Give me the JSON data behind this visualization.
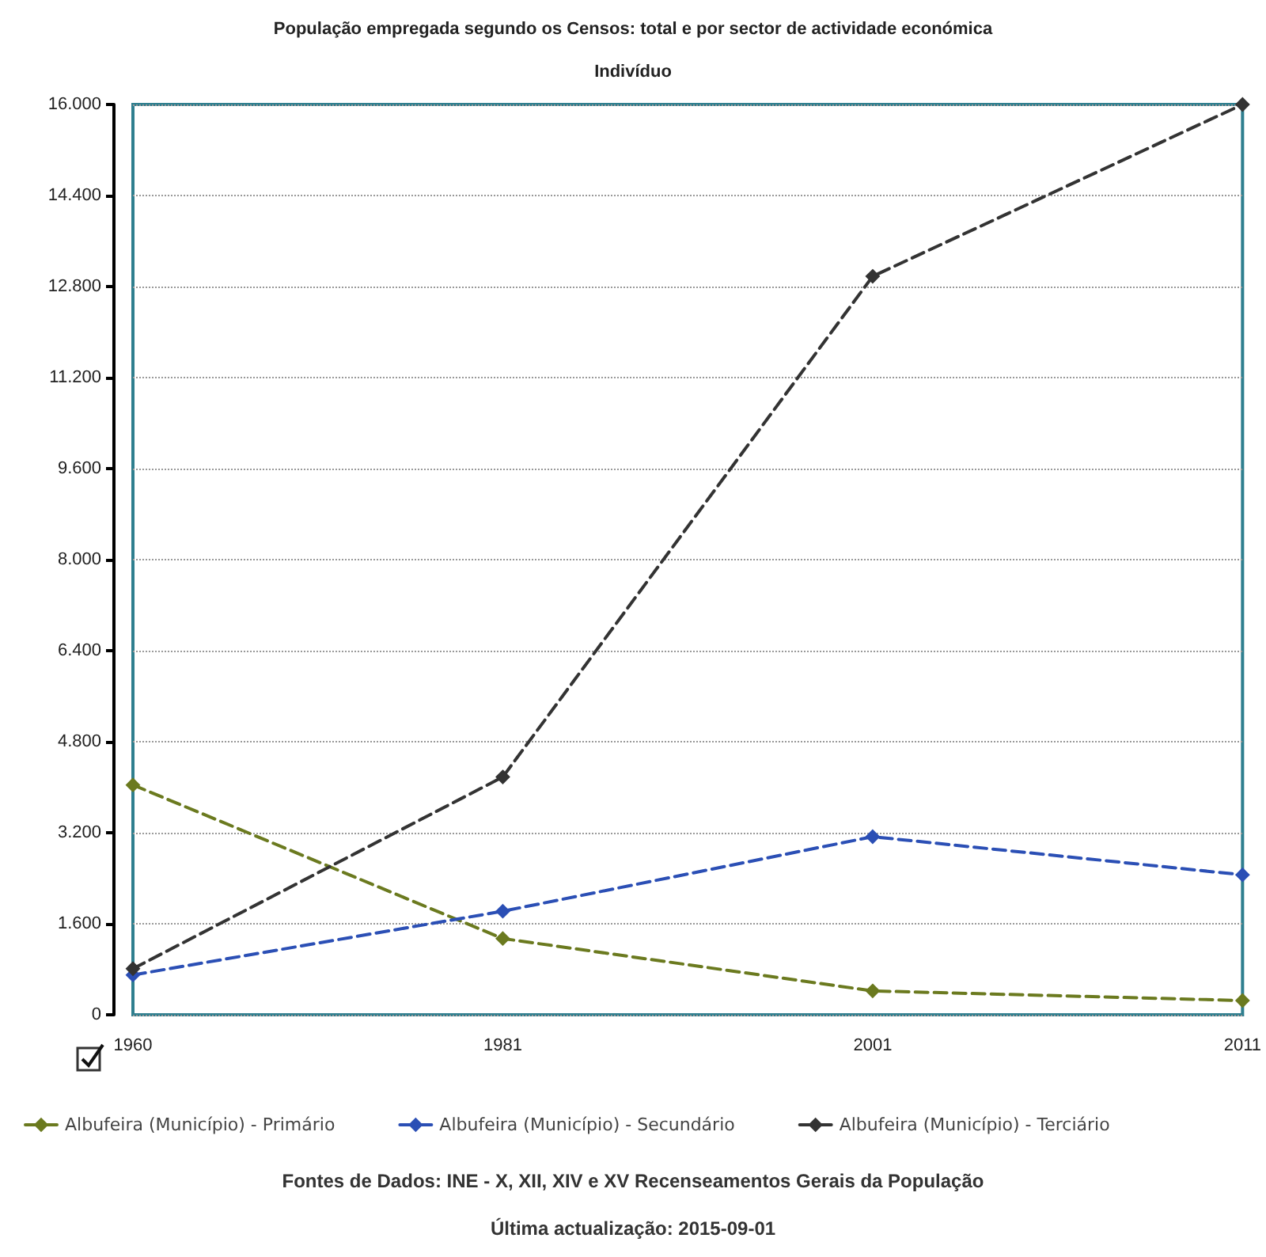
{
  "chart_data": {
    "type": "line",
    "title": "População empregada segundo os Censos: total e por sector de actividade económica",
    "subtitle": "Indivíduo",
    "categories": [
      "1960",
      "1981",
      "2001",
      "2011"
    ],
    "series": [
      {
        "name": "Albufeira (Município) - Primário",
        "color": "#6b7a1f",
        "values": [
          4040,
          1340,
          420,
          250
        ]
      },
      {
        "name": "Albufeira (Município) - Secundário",
        "color": "#2b4fb5",
        "values": [
          700,
          1820,
          3130,
          2460
        ]
      },
      {
        "name": "Albufeira (Município) - Terciário",
        "color": "#333333",
        "values": [
          810,
          4180,
          12980,
          16000
        ]
      }
    ],
    "ylim": [
      0,
      16000
    ],
    "yticks": [
      {
        "value": 0,
        "label": "0"
      },
      {
        "value": 1600,
        "label": "1.600"
      },
      {
        "value": 3200,
        "label": "3.200"
      },
      {
        "value": 4800,
        "label": "4.800"
      },
      {
        "value": 6400,
        "label": "6.400"
      },
      {
        "value": 8000,
        "label": "8.000"
      },
      {
        "value": 9600,
        "label": "9.600"
      },
      {
        "value": 11200,
        "label": "11.200"
      },
      {
        "value": 12800,
        "label": "12.800"
      },
      {
        "value": 14400,
        "label": "14.400"
      },
      {
        "value": 16000,
        "label": "16.000"
      }
    ],
    "grid": "y",
    "legend": "bottom",
    "marker": "diamond",
    "line_style": "dashed",
    "annotations": [
      "Fontes de Dados: INE - X, XII, XIV e XV Recenseamentos Gerais da População",
      "Última actualização: 2015-09-01"
    ]
  }
}
